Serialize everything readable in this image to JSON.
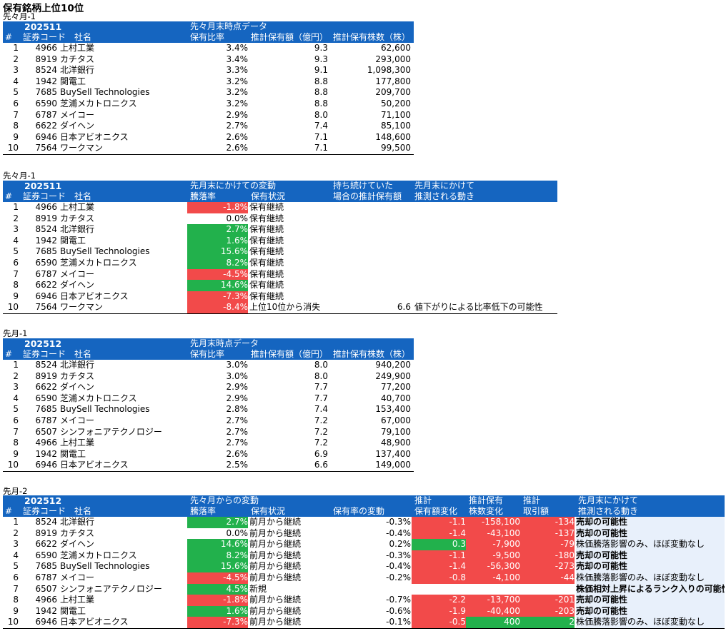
{
  "title": "保有銘柄上位10位",
  "t1": {
    "label": "先々月-1",
    "period": "202511",
    "group": "先々月末時点データ",
    "headers": {
      "no": "#",
      "code": "証券コード",
      "name": "社名",
      "ratio": "保有比率",
      "amount": "推計保有額（億円）",
      "shares": "推計保有株数（株）"
    },
    "rows": [
      {
        "no": "1",
        "code": "4966",
        "name": "上村工業",
        "ratio": "3.4%",
        "amount": "9.3",
        "shares": "62,600"
      },
      {
        "no": "2",
        "code": "8919",
        "name": "カチタス",
        "ratio": "3.4%",
        "amount": "9.3",
        "shares": "293,000"
      },
      {
        "no": "3",
        "code": "8524",
        "name": "北洋銀行",
        "ratio": "3.3%",
        "amount": "9.1",
        "shares": "1,098,300"
      },
      {
        "no": "4",
        "code": "1942",
        "name": "関電工",
        "ratio": "3.2%",
        "amount": "8.8",
        "shares": "177,800"
      },
      {
        "no": "5",
        "code": "7685",
        "name": "BuySell Technologies",
        "ratio": "3.2%",
        "amount": "8.8",
        "shares": "209,700"
      },
      {
        "no": "6",
        "code": "6590",
        "name": "芝浦メカトロニクス",
        "ratio": "3.2%",
        "amount": "8.8",
        "shares": "50,200"
      },
      {
        "no": "7",
        "code": "6787",
        "name": "メイコー",
        "ratio": "2.9%",
        "amount": "8.0",
        "shares": "71,100"
      },
      {
        "no": "8",
        "code": "6622",
        "name": "ダイヘン",
        "ratio": "2.7%",
        "amount": "7.4",
        "shares": "85,100"
      },
      {
        "no": "9",
        "code": "6946",
        "name": "日本アビオニクス",
        "ratio": "2.6%",
        "amount": "7.1",
        "shares": "148,600"
      },
      {
        "no": "10",
        "code": "7564",
        "name": "ワークマン",
        "ratio": "2.6%",
        "amount": "7.1",
        "shares": "99,500"
      }
    ]
  },
  "t2": {
    "label": "先々月-1",
    "period": "202511",
    "group": "先月末にかけての変動",
    "group2a": "持ち続けていた",
    "group2b": "場合の推計保有額",
    "group3a": "先月末にかけて",
    "group3b": "推測される動き",
    "headers": {
      "no": "#",
      "code": "証券コード",
      "name": "社名",
      "chg": "騰落率",
      "status": "保有状況"
    },
    "rows": [
      {
        "no": "1",
        "code": "4966",
        "name": "上村工業",
        "chg": "-1.8%",
        "color": "red",
        "status": "保有継続",
        "hold": "",
        "move": ""
      },
      {
        "no": "2",
        "code": "8919",
        "name": "カチタス",
        "chg": "0.0%",
        "color": "",
        "status": "保有継続",
        "hold": "",
        "move": ""
      },
      {
        "no": "3",
        "code": "8524",
        "name": "北洋銀行",
        "chg": "2.7%",
        "color": "grn",
        "status": "保有継続",
        "hold": "",
        "move": ""
      },
      {
        "no": "4",
        "code": "1942",
        "name": "関電工",
        "chg": "1.6%",
        "color": "grn",
        "status": "保有継続",
        "hold": "",
        "move": ""
      },
      {
        "no": "5",
        "code": "7685",
        "name": "BuySell Technologies",
        "chg": "15.6%",
        "color": "grn",
        "status": "保有継続",
        "hold": "",
        "move": ""
      },
      {
        "no": "6",
        "code": "6590",
        "name": "芝浦メカトロニクス",
        "chg": "8.2%",
        "color": "grn",
        "status": "保有継続",
        "hold": "",
        "move": ""
      },
      {
        "no": "7",
        "code": "6787",
        "name": "メイコー",
        "chg": "-4.5%",
        "color": "red",
        "status": "保有継続",
        "hold": "",
        "move": ""
      },
      {
        "no": "8",
        "code": "6622",
        "name": "ダイヘン",
        "chg": "14.6%",
        "color": "grn",
        "status": "保有継続",
        "hold": "",
        "move": ""
      },
      {
        "no": "9",
        "code": "6946",
        "name": "日本アビオニクス",
        "chg": "-7.3%",
        "color": "red",
        "status": "保有継続",
        "hold": "",
        "move": ""
      },
      {
        "no": "10",
        "code": "7564",
        "name": "ワークマン",
        "chg": "-8.4%",
        "color": "red",
        "status": "上位10位から消失",
        "hold": "6.6",
        "move": "値下がりによる比率低下の可能性"
      }
    ]
  },
  "t3": {
    "label": "先月-1",
    "period": "202512",
    "group": "先月末時点データ",
    "headers": {
      "no": "#",
      "code": "証券コード",
      "name": "社名",
      "ratio": "保有比率",
      "amount": "推計保有額（億円）",
      "shares": "推計保有株数（株）"
    },
    "rows": [
      {
        "no": "1",
        "code": "8524",
        "name": "北洋銀行",
        "ratio": "3.0%",
        "amount": "8.0",
        "shares": "940,200"
      },
      {
        "no": "2",
        "code": "8919",
        "name": "カチタス",
        "ratio": "3.0%",
        "amount": "8.0",
        "shares": "249,900"
      },
      {
        "no": "3",
        "code": "6622",
        "name": "ダイヘン",
        "ratio": "2.9%",
        "amount": "7.7",
        "shares": "77,200"
      },
      {
        "no": "4",
        "code": "6590",
        "name": "芝浦メカトロニクス",
        "ratio": "2.9%",
        "amount": "7.7",
        "shares": "40,700"
      },
      {
        "no": "5",
        "code": "7685",
        "name": "BuySell Technologies",
        "ratio": "2.8%",
        "amount": "7.4",
        "shares": "153,400"
      },
      {
        "no": "6",
        "code": "6787",
        "name": "メイコー",
        "ratio": "2.7%",
        "amount": "7.2",
        "shares": "67,000"
      },
      {
        "no": "7",
        "code": "6507",
        "name": "シンフォニアテクノロジー",
        "ratio": "2.7%",
        "amount": "7.2",
        "shares": "79,100"
      },
      {
        "no": "8",
        "code": "4966",
        "name": "上村工業",
        "ratio": "2.7%",
        "amount": "7.2",
        "shares": "48,900"
      },
      {
        "no": "9",
        "code": "1942",
        "name": "関電工",
        "ratio": "2.6%",
        "amount": "6.9",
        "shares": "137,400"
      },
      {
        "no": "10",
        "code": "6946",
        "name": "日本アビオニクス",
        "ratio": "2.5%",
        "amount": "6.6",
        "shares": "149,000"
      }
    ]
  },
  "t4": {
    "label": "先月-2",
    "period": "202512",
    "group": "先々月からの変動",
    "g_amt_a": "推計",
    "g_amt_b": "保有額変化",
    "g_sh_a": "推計保有",
    "g_sh_b": "株数変化",
    "g_tr_a": "推計",
    "g_tr_b": "取引額",
    "g_mv_a": "先月末にかけて",
    "g_mv_b": "推測される動き",
    "headers": {
      "no": "#",
      "code": "証券コード",
      "name": "社名",
      "chg": "騰落率",
      "status": "保有状況",
      "rchg": "保有率の変動"
    },
    "rows": [
      {
        "no": "1",
        "code": "8524",
        "name": "北洋銀行",
        "chg": "2.7%",
        "cc": "grn",
        "status": "前月から継続",
        "rchg": "-0.3%",
        "amt": "-1.1",
        "ac": "red",
        "sh": "-158,100",
        "sc": "red",
        "tr": "-134",
        "tc": "red",
        "move": "売却の可能性",
        "mb": true
      },
      {
        "no": "2",
        "code": "8919",
        "name": "カチタス",
        "chg": "0.0%",
        "cc": "",
        "status": "前月から継続",
        "rchg": "-0.4%",
        "amt": "-1.4",
        "ac": "red",
        "sh": "-43,100",
        "sc": "red",
        "tr": "-137",
        "tc": "red",
        "move": "売却の可能性",
        "mb": true
      },
      {
        "no": "3",
        "code": "6622",
        "name": "ダイヘン",
        "chg": "14.6%",
        "cc": "grn",
        "status": "前月から継続",
        "rchg": "0.2%",
        "amt": "0.3",
        "ac": "grn",
        "sh": "-7,900",
        "sc": "red",
        "tr": "-79",
        "tc": "red",
        "move": "株価騰落影響のみ、ほぼ変動なし",
        "mb": false
      },
      {
        "no": "4",
        "code": "6590",
        "name": "芝浦メカトロニクス",
        "chg": "8.2%",
        "cc": "grn",
        "status": "前月から継続",
        "rchg": "-0.3%",
        "amt": "-1.1",
        "ac": "red",
        "sh": "-9,500",
        "sc": "red",
        "tr": "-180",
        "tc": "red",
        "move": "売却の可能性",
        "mb": true
      },
      {
        "no": "5",
        "code": "7685",
        "name": "BuySell Technologies",
        "chg": "15.6%",
        "cc": "grn",
        "status": "前月から継続",
        "rchg": "-0.4%",
        "amt": "-1.4",
        "ac": "red",
        "sh": "-56,300",
        "sc": "red",
        "tr": "-273",
        "tc": "red",
        "move": "売却の可能性",
        "mb": true
      },
      {
        "no": "6",
        "code": "6787",
        "name": "メイコー",
        "chg": "-4.5%",
        "cc": "red",
        "status": "前月から継続",
        "rchg": "-0.2%",
        "amt": "-0.8",
        "ac": "red",
        "sh": "-4,100",
        "sc": "red",
        "tr": "-44",
        "tc": "red",
        "move": "株価騰落影響のみ、ほぼ変動なし",
        "mb": false
      },
      {
        "no": "7",
        "code": "6507",
        "name": "シンフォニアテクノロジー",
        "chg": "4.5%",
        "cc": "grn",
        "status": "新規",
        "rchg": "",
        "amt": "",
        "ac": "grn",
        "sh": "",
        "sc": "grn",
        "tr": "",
        "tc": "grn",
        "move": "株価相対上昇によるランク入りの可能性",
        "mb": true
      },
      {
        "no": "8",
        "code": "4966",
        "name": "上村工業",
        "chg": "-1.8%",
        "cc": "red",
        "status": "前月から継続",
        "rchg": "-0.7%",
        "amt": "-2.2",
        "ac": "red",
        "sh": "-13,700",
        "sc": "red",
        "tr": "-201",
        "tc": "red",
        "move": "売却の可能性",
        "mb": true
      },
      {
        "no": "9",
        "code": "1942",
        "name": "関電工",
        "chg": "1.6%",
        "cc": "grn",
        "status": "前月から継続",
        "rchg": "-0.6%",
        "amt": "-1.9",
        "ac": "red",
        "sh": "-40,400",
        "sc": "red",
        "tr": "-203",
        "tc": "red",
        "move": "売却の可能性",
        "mb": true
      },
      {
        "no": "10",
        "code": "6946",
        "name": "日本アビオニクス",
        "chg": "-7.3%",
        "cc": "red",
        "status": "前月から継続",
        "rchg": "-0.1%",
        "amt": "-0.5",
        "ac": "red",
        "sh": "400",
        "sc": "grn",
        "tr": "2",
        "tc": "grn",
        "move": "株価騰落影響のみ、ほぼ変動なし",
        "mb": false
      }
    ]
  }
}
